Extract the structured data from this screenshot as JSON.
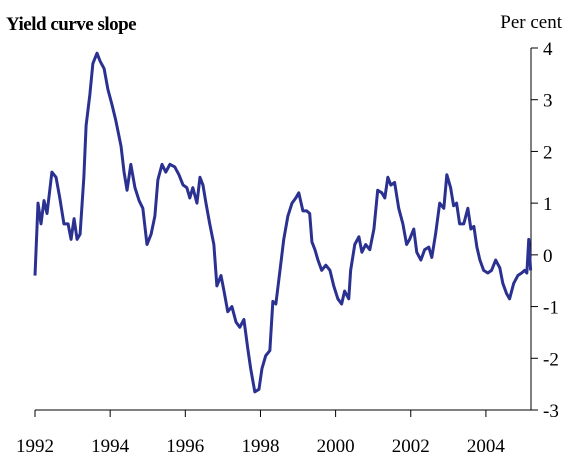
{
  "chart_data": {
    "type": "line",
    "title": "Yield curve slope",
    "y_axis_label": "Per cent",
    "xlim": [
      1992,
      2005.2
    ],
    "xticks": [
      1992,
      1994,
      1996,
      1998,
      2000,
      2002,
      2004
    ],
    "ylim": [
      -3,
      4
    ],
    "yticks": [
      -3,
      -2,
      -1,
      0,
      1,
      2,
      3,
      4
    ],
    "grid": false,
    "y_axis_side": "right",
    "x": [
      1992.0,
      1992.08,
      1992.16,
      1992.24,
      1992.32,
      1992.45,
      1992.56,
      1992.66,
      1992.77,
      1992.88,
      1992.96,
      1993.04,
      1993.12,
      1993.2,
      1993.3,
      1993.36,
      1993.46,
      1993.54,
      1993.65,
      1993.73,
      1993.84,
      1993.94,
      1994.05,
      1994.15,
      1994.29,
      1994.37,
      1994.45,
      1994.55,
      1994.66,
      1994.77,
      1994.87,
      1994.98,
      1995.09,
      1995.19,
      1995.27,
      1995.38,
      1995.48,
      1995.59,
      1995.72,
      1995.83,
      1995.94,
      1996.04,
      1996.12,
      1996.2,
      1996.31,
      1996.39,
      1996.47,
      1996.55,
      1996.65,
      1996.76,
      1996.84,
      1996.95,
      1997.03,
      1997.13,
      1997.24,
      1997.35,
      1997.45,
      1997.56,
      1997.66,
      1997.74,
      1997.85,
      1997.96,
      1998.04,
      1998.14,
      1998.25,
      1998.33,
      1998.41,
      1998.52,
      1998.62,
      1998.73,
      1998.84,
      1998.94,
      1999.02,
      1999.13,
      1999.23,
      1999.31,
      1999.37,
      1999.45,
      1999.53,
      1999.63,
      1999.74,
      1999.85,
      1999.95,
      2000.06,
      2000.16,
      2000.24,
      2000.35,
      2000.4,
      2000.51,
      2000.62,
      2000.7,
      2000.8,
      2000.91,
      2001.02,
      2001.12,
      2001.23,
      2001.31,
      2001.39,
      2001.47,
      2001.57,
      2001.68,
      2001.79,
      2001.89,
      2001.97,
      2002.08,
      2002.16,
      2002.27,
      2002.37,
      2002.48,
      2002.56,
      2002.66,
      2002.77,
      2002.88,
      2002.96,
      2003.06,
      2003.14,
      2003.22,
      2003.3,
      2003.41,
      2003.52,
      2003.6,
      2003.68,
      2003.76,
      2003.84,
      2003.94,
      2004.05,
      2004.15,
      2004.26,
      2004.37,
      2004.45,
      2004.55,
      2004.63,
      2004.74,
      2004.85,
      2004.95,
      2005.03,
      2005.09,
      2005.14,
      2005.19
    ],
    "series": [
      {
        "name": "Yield curve slope",
        "color": "#2b3190",
        "values": [
          -0.4,
          1.0,
          0.6,
          1.05,
          0.8,
          1.6,
          1.5,
          1.1,
          0.6,
          0.6,
          0.3,
          0.7,
          0.3,
          0.4,
          1.5,
          2.5,
          3.1,
          3.7,
          3.9,
          3.75,
          3.6,
          3.2,
          2.9,
          2.6,
          2.1,
          1.6,
          1.25,
          1.75,
          1.3,
          1.05,
          0.9,
          0.2,
          0.4,
          0.75,
          1.45,
          1.75,
          1.6,
          1.75,
          1.7,
          1.55,
          1.35,
          1.3,
          1.1,
          1.3,
          1.0,
          1.5,
          1.35,
          1.0,
          0.6,
          0.2,
          -0.6,
          -0.4,
          -0.7,
          -1.1,
          -1.0,
          -1.3,
          -1.4,
          -1.25,
          -1.8,
          -2.2,
          -2.65,
          -2.6,
          -2.2,
          -1.95,
          -1.85,
          -0.9,
          -0.95,
          -0.3,
          0.3,
          0.75,
          1.0,
          1.1,
          1.2,
          0.85,
          0.85,
          0.8,
          0.25,
          0.1,
          -0.1,
          -0.3,
          -0.2,
          -0.3,
          -0.6,
          -0.85,
          -0.95,
          -0.7,
          -0.85,
          -0.3,
          0.2,
          0.35,
          0.05,
          0.2,
          0.1,
          0.5,
          1.25,
          1.2,
          1.1,
          1.5,
          1.35,
          1.4,
          0.9,
          0.6,
          0.2,
          0.3,
          0.5,
          0.05,
          -0.1,
          0.1,
          0.15,
          -0.05,
          0.4,
          1.0,
          0.9,
          1.55,
          1.3,
          0.95,
          1.0,
          0.6,
          0.6,
          0.9,
          0.5,
          0.55,
          0.15,
          -0.1,
          -0.3,
          -0.35,
          -0.3,
          -0.1,
          -0.25,
          -0.55,
          -0.75,
          -0.85,
          -0.55,
          -0.4,
          -0.35,
          -0.3,
          -0.35,
          0.3,
          -0.3
        ]
      }
    ]
  }
}
